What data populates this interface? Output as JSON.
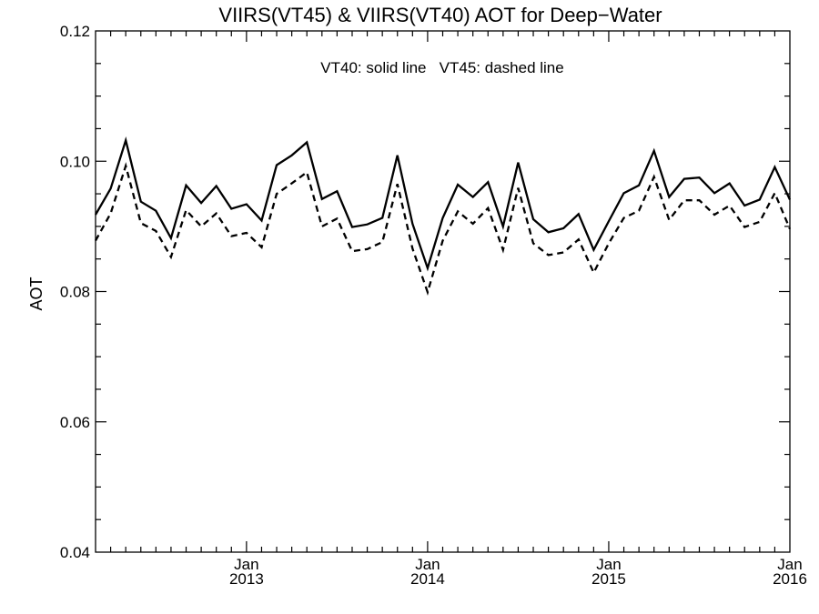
{
  "chart_data": {
    "type": "line",
    "title": "VIIRS(VT45) & VIIRS(VT40)  AOT for Deep−Water",
    "annotation": "VT40: solid line   VT45: dashed line",
    "xlabel": "",
    "ylabel": "AOT",
    "ylim": [
      0.04,
      0.12
    ],
    "yticks": [
      "0.04",
      "0.06",
      "0.08",
      "0.10",
      "0.12"
    ],
    "xlim": [
      "2012-03",
      "2016-01"
    ],
    "xticks": [
      {
        "month": "2013-01",
        "line1": "Jan",
        "line2": "2013"
      },
      {
        "month": "2014-01",
        "line1": "Jan",
        "line2": "2014"
      },
      {
        "month": "2015-01",
        "line1": "Jan",
        "line2": "2015"
      },
      {
        "month": "2016-01",
        "line1": "Jan",
        "line2": "2016"
      }
    ],
    "grid": false,
    "x": [
      "2012-03",
      "2012-04",
      "2012-05",
      "2012-06",
      "2012-07",
      "2012-08",
      "2012-09",
      "2012-10",
      "2012-11",
      "2012-12",
      "2013-01",
      "2013-02",
      "2013-03",
      "2013-04",
      "2013-05",
      "2013-06",
      "2013-07",
      "2013-08",
      "2013-09",
      "2013-10",
      "2013-11",
      "2013-12",
      "2014-01",
      "2014-02",
      "2014-03",
      "2014-04",
      "2014-05",
      "2014-06",
      "2014-07",
      "2014-08",
      "2014-09",
      "2014-10",
      "2014-11",
      "2014-12",
      "2015-01",
      "2015-02",
      "2015-03",
      "2015-04",
      "2015-05",
      "2015-06",
      "2015-07",
      "2015-08",
      "2015-09",
      "2015-10",
      "2015-11",
      "2015-12",
      "2016-01"
    ],
    "series": [
      {
        "name": "VT40",
        "style": "solid",
        "values": [
          0.0918,
          0.0958,
          0.1032,
          0.0938,
          0.0924,
          0.0882,
          0.0963,
          0.0936,
          0.0962,
          0.0927,
          0.0934,
          0.0909,
          0.0994,
          0.1009,
          0.1029,
          0.0942,
          0.0954,
          0.0899,
          0.0903,
          0.0913,
          0.1009,
          0.0904,
          0.0836,
          0.0913,
          0.0964,
          0.0945,
          0.0968,
          0.09,
          0.0998,
          0.0911,
          0.0891,
          0.0897,
          0.0919,
          0.0864,
          0.0908,
          0.0951,
          0.0963,
          0.1016,
          0.0945,
          0.0973,
          0.0975,
          0.0951,
          0.0966,
          0.0932,
          0.0941,
          0.0991,
          0.0941
        ]
      },
      {
        "name": "VT45",
        "style": "dashed",
        "values": [
          0.0878,
          0.092,
          0.0993,
          0.0905,
          0.0893,
          0.0853,
          0.0925,
          0.09,
          0.092,
          0.0885,
          0.089,
          0.0868,
          0.095,
          0.0966,
          0.0983,
          0.09,
          0.0912,
          0.0862,
          0.0865,
          0.0876,
          0.0965,
          0.0866,
          0.0799,
          0.0878,
          0.0923,
          0.0904,
          0.0928,
          0.0864,
          0.0959,
          0.0874,
          0.0856,
          0.086,
          0.088,
          0.0829,
          0.0874,
          0.0913,
          0.0924,
          0.0976,
          0.091,
          0.094,
          0.094,
          0.0918,
          0.0932,
          0.0899,
          0.0907,
          0.0951,
          0.0896
        ]
      }
    ]
  }
}
